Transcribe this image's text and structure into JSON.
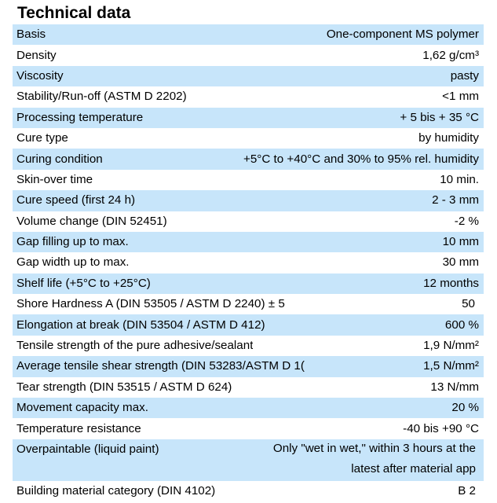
{
  "title": "Technical data",
  "rows": [
    {
      "label": "Basis",
      "value": "One-component MS polymer"
    },
    {
      "label": "Density",
      "value": "1,62 g/cm³"
    },
    {
      "label": "Viscosity",
      "value": "pasty"
    },
    {
      "label": "Stability/Run-off (ASTM D 2202)",
      "value": "<1 mm"
    },
    {
      "label": "Processing temperature",
      "value": "+ 5 bis + 35 °C"
    },
    {
      "label": "Cure type",
      "value": "by humidity"
    },
    {
      "label": "Curing condition",
      "value": "+5°C to +40°C and 30% to 95% rel. humidity"
    },
    {
      "label": "Skin-over time",
      "value": "10 min."
    },
    {
      "label": "Cure speed (first 24 h)",
      "value": "2 - 3 mm"
    },
    {
      "label": "Volume change (DIN 52451)",
      "value": "-2 %"
    },
    {
      "label": "Gap filling up to max.",
      "value": "10 mm"
    },
    {
      "label": "Gap width up to max.",
      "value": "30 mm"
    },
    {
      "label": "Shelf life (+5°C to +25°C)",
      "value": "12 months"
    },
    {
      "label": "Shore Hardness A (DIN 53505 / ASTM D 2240) ± 5",
      "value": "50"
    },
    {
      "label": "Elongation at break (DIN 53504 / ASTM D 412)",
      "value": "600 %"
    },
    {
      "label": "Tensile strength of the pure adhesive/sealant",
      "value": "1,9 N/mm²"
    },
    {
      "label": "Average tensile shear strength (DIN 53283/ASTM D 1(",
      "value": "1,5 N/mm²"
    },
    {
      "label": "Tear strength (DIN 53515 / ASTM D 624)",
      "value": "13 N/mm"
    },
    {
      "label": "Movement capacity max.",
      "value": "20 %"
    },
    {
      "label": "Temperature resistance",
      "value": "-40 bis +90 °C"
    },
    {
      "label": "Overpaintable (liquid paint)",
      "value_line1": "Only \"wet in wet,\" within 3 hours at the",
      "value_line2": "latest after material app"
    },
    {
      "label": "Building material category (DIN 4102)",
      "value": "B 2"
    }
  ],
  "colors": {
    "row_shade": "#c7e5fa",
    "background": "#ffffff"
  }
}
